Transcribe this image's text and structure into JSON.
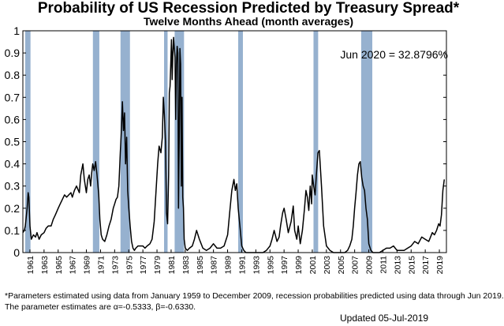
{
  "chart_data": {
    "type": "line",
    "title": "Probability of US Recession Predicted by Treasury Spread*",
    "subtitle": "Twelve Months Ahead (month averages)",
    "xlabel": "",
    "ylabel": "",
    "xlim": [
      1960.0,
      2020.0
    ],
    "ylim": [
      0,
      1
    ],
    "yticks": [
      0,
      0.1,
      0.2,
      0.3,
      0.4,
      0.5,
      0.6,
      0.7,
      0.8,
      0.9,
      1
    ],
    "ytick_labels": [
      "0",
      "0.1",
      "0.2",
      "0.3",
      "0.4",
      "0.5",
      "0.6",
      "0.7",
      "0.8",
      "0.9",
      "1"
    ],
    "xticks": [
      1961,
      1963,
      1965,
      1967,
      1969,
      1971,
      1973,
      1975,
      1977,
      1979,
      1981,
      1983,
      1985,
      1987,
      1989,
      1991,
      1993,
      1995,
      1997,
      1999,
      2001,
      2003,
      2005,
      2007,
      2009,
      2011,
      2013,
      2015,
      2017,
      2019
    ],
    "xtick_labels": [
      "1961",
      "1963",
      "1965",
      "1967",
      "1969",
      "1971",
      "1973",
      "1975",
      "1977",
      "1979",
      "1981",
      "1983",
      "1985",
      "1987",
      "1989",
      "1991",
      "1993",
      "1995",
      "1997",
      "1999",
      "2001",
      "2003",
      "2005",
      "2007",
      "2009",
      "2011",
      "2013",
      "2015",
      "2017",
      "2019"
    ],
    "grid": false,
    "legend": "none",
    "recessions": [
      [
        1960.33,
        1961.08
      ],
      [
        1969.92,
        1970.83
      ],
      [
        1973.83,
        1975.17
      ],
      [
        1980.0,
        1980.5
      ],
      [
        1981.5,
        1982.83
      ],
      [
        1990.5,
        1991.17
      ],
      [
        2001.17,
        2001.83
      ],
      [
        2007.92,
        2009.5
      ]
    ],
    "annotation": "Jun 2020 = 32.8796%",
    "series": [
      {
        "x": [
          1960.0,
          1960.2,
          1960.35,
          1960.6,
          1960.75,
          1960.85,
          1961.0,
          1961.2,
          1961.5,
          1961.8,
          1962.0,
          1962.3,
          1962.6,
          1963.0,
          1963.3,
          1963.6,
          1964.0,
          1964.3,
          1964.6,
          1965.0,
          1965.3,
          1965.6,
          1965.9,
          1966.2,
          1966.5,
          1966.8,
          1967.0,
          1967.3,
          1967.6,
          1968.0,
          1968.2,
          1968.5,
          1968.7,
          1968.85,
          1969.0,
          1969.2,
          1969.4,
          1969.6,
          1969.75,
          1969.9,
          1970.1,
          1970.3,
          1970.5,
          1970.75,
          1970.9,
          1971.1,
          1971.3,
          1971.6,
          1971.9,
          1972.2,
          1972.5,
          1972.8,
          1973.0,
          1973.2,
          1973.4,
          1973.6,
          1973.8,
          1973.95,
          1974.1,
          1974.25,
          1974.4,
          1974.55,
          1974.7,
          1974.85,
          1975.0,
          1975.2,
          1975.4,
          1975.6,
          1975.8,
          1976.0,
          1976.3,
          1976.6,
          1977.0,
          1977.3,
          1977.6,
          1978.0,
          1978.3,
          1978.6,
          1978.9,
          1979.1,
          1979.3,
          1979.55,
          1979.75,
          1979.9,
          1980.05,
          1980.2,
          1980.35,
          1980.5,
          1980.65,
          1980.75,
          1980.85,
          1980.95,
          1981.05,
          1981.15,
          1981.25,
          1981.35,
          1981.45,
          1981.55,
          1981.65,
          1981.75,
          1981.85,
          1981.95,
          1982.05,
          1982.15,
          1982.25,
          1982.35,
          1982.45,
          1982.55,
          1982.65,
          1982.75,
          1982.85,
          1983.0,
          1983.3,
          1983.6,
          1984.0,
          1984.3,
          1984.6,
          1985.0,
          1985.5,
          1986.0,
          1986.5,
          1987.0,
          1987.5,
          1988.0,
          1988.5,
          1989.0,
          1989.3,
          1989.6,
          1989.9,
          1990.1,
          1990.3,
          1990.5,
          1990.8,
          1991.0,
          1991.3,
          1991.6,
          1992.0,
          1992.5,
          1993.0,
          1993.5,
          1994.0,
          1994.5,
          1995.0,
          1995.3,
          1995.6,
          1996.0,
          1996.3,
          1996.5,
          1996.8,
          1997.0,
          1997.3,
          1997.6,
          1998.0,
          1998.3,
          1998.5,
          1998.8,
          1999.0,
          1999.3,
          1999.6,
          1999.9,
          2000.1,
          2000.3,
          2000.5,
          2000.7,
          2000.9,
          2001.0,
          2001.2,
          2001.4,
          2001.6,
          2001.8,
          2002.0,
          2002.3,
          2002.6,
          2003.0,
          2003.5,
          2004.0,
          2004.5,
          2005.0,
          2005.3,
          2005.6,
          2006.0,
          2006.3,
          2006.6,
          2006.8,
          2007.0,
          2007.2,
          2007.4,
          2007.6,
          2007.8,
          2008.0,
          2008.2,
          2008.4,
          2008.6,
          2008.8,
          2009.0,
          2009.3,
          2009.6,
          2010.0,
          2010.5,
          2011.0,
          2011.5,
          2012.0,
          2012.5,
          2013.0,
          2013.5,
          2014.0,
          2014.5,
          2015.0,
          2015.5,
          2016.0,
          2016.5,
          2017.0,
          2017.5,
          2018.0,
          2018.3,
          2018.6,
          2018.9,
          2019.1,
          2019.3,
          2019.5,
          2019.7
        ],
        "values": [
          0.09,
          0.1,
          0.12,
          0.2,
          0.27,
          0.25,
          0.12,
          0.06,
          0.08,
          0.07,
          0.09,
          0.06,
          0.08,
          0.09,
          0.11,
          0.12,
          0.12,
          0.15,
          0.17,
          0.2,
          0.22,
          0.24,
          0.26,
          0.25,
          0.26,
          0.27,
          0.25,
          0.28,
          0.3,
          0.27,
          0.35,
          0.4,
          0.33,
          0.3,
          0.27,
          0.33,
          0.35,
          0.3,
          0.36,
          0.4,
          0.37,
          0.41,
          0.35,
          0.26,
          0.15,
          0.08,
          0.06,
          0.05,
          0.08,
          0.12,
          0.15,
          0.2,
          0.22,
          0.24,
          0.25,
          0.3,
          0.45,
          0.55,
          0.68,
          0.55,
          0.63,
          0.4,
          0.52,
          0.28,
          0.2,
          0.12,
          0.05,
          0.02,
          0.01,
          0.02,
          0.03,
          0.03,
          0.03,
          0.02,
          0.03,
          0.04,
          0.06,
          0.14,
          0.3,
          0.4,
          0.48,
          0.45,
          0.52,
          0.7,
          0.62,
          0.5,
          0.18,
          0.13,
          0.35,
          0.72,
          0.75,
          0.85,
          0.96,
          0.78,
          0.9,
          0.97,
          0.92,
          0.88,
          0.6,
          0.85,
          0.93,
          0.9,
          0.2,
          0.5,
          0.92,
          0.85,
          0.3,
          0.7,
          0.25,
          0.2,
          0.06,
          0.02,
          0.01,
          0.02,
          0.03,
          0.06,
          0.1,
          0.06,
          0.02,
          0.01,
          0.02,
          0.04,
          0.02,
          0.02,
          0.03,
          0.08,
          0.18,
          0.28,
          0.33,
          0.28,
          0.31,
          0.2,
          0.1,
          0.03,
          0.01,
          0.0,
          0.0,
          0.0,
          0.0,
          0.0,
          0.0,
          0.01,
          0.03,
          0.06,
          0.1,
          0.05,
          0.07,
          0.12,
          0.18,
          0.2,
          0.15,
          0.09,
          0.14,
          0.21,
          0.1,
          0.06,
          0.12,
          0.04,
          0.1,
          0.2,
          0.28,
          0.25,
          0.19,
          0.3,
          0.22,
          0.35,
          0.3,
          0.26,
          0.36,
          0.45,
          0.46,
          0.3,
          0.12,
          0.03,
          0.01,
          0.0,
          0.0,
          0.0,
          0.0,
          0.0,
          0.01,
          0.03,
          0.06,
          0.12,
          0.2,
          0.27,
          0.35,
          0.4,
          0.41,
          0.34,
          0.3,
          0.28,
          0.2,
          0.15,
          0.04,
          0.01,
          0.0,
          0.0,
          0.0,
          0.01,
          0.02,
          0.02,
          0.03,
          0.01,
          0.01,
          0.01,
          0.02,
          0.03,
          0.05,
          0.04,
          0.07,
          0.06,
          0.05,
          0.09,
          0.08,
          0.1,
          0.13,
          0.12,
          0.17,
          0.28,
          0.33
        ]
      }
    ]
  },
  "footnote": {
    "line1": "*Parameters estimated using data from January 1959 to December 2009, recession probabilities predicted using data through Jun 2019.",
    "line2": "The parameter estimates are α=-0.5333, β=-0.6330."
  },
  "updated": "Updated 05-Jul-2019",
  "colors": {
    "recession_band": "#96b1cf",
    "line": "#000000",
    "axis": "#000000"
  }
}
